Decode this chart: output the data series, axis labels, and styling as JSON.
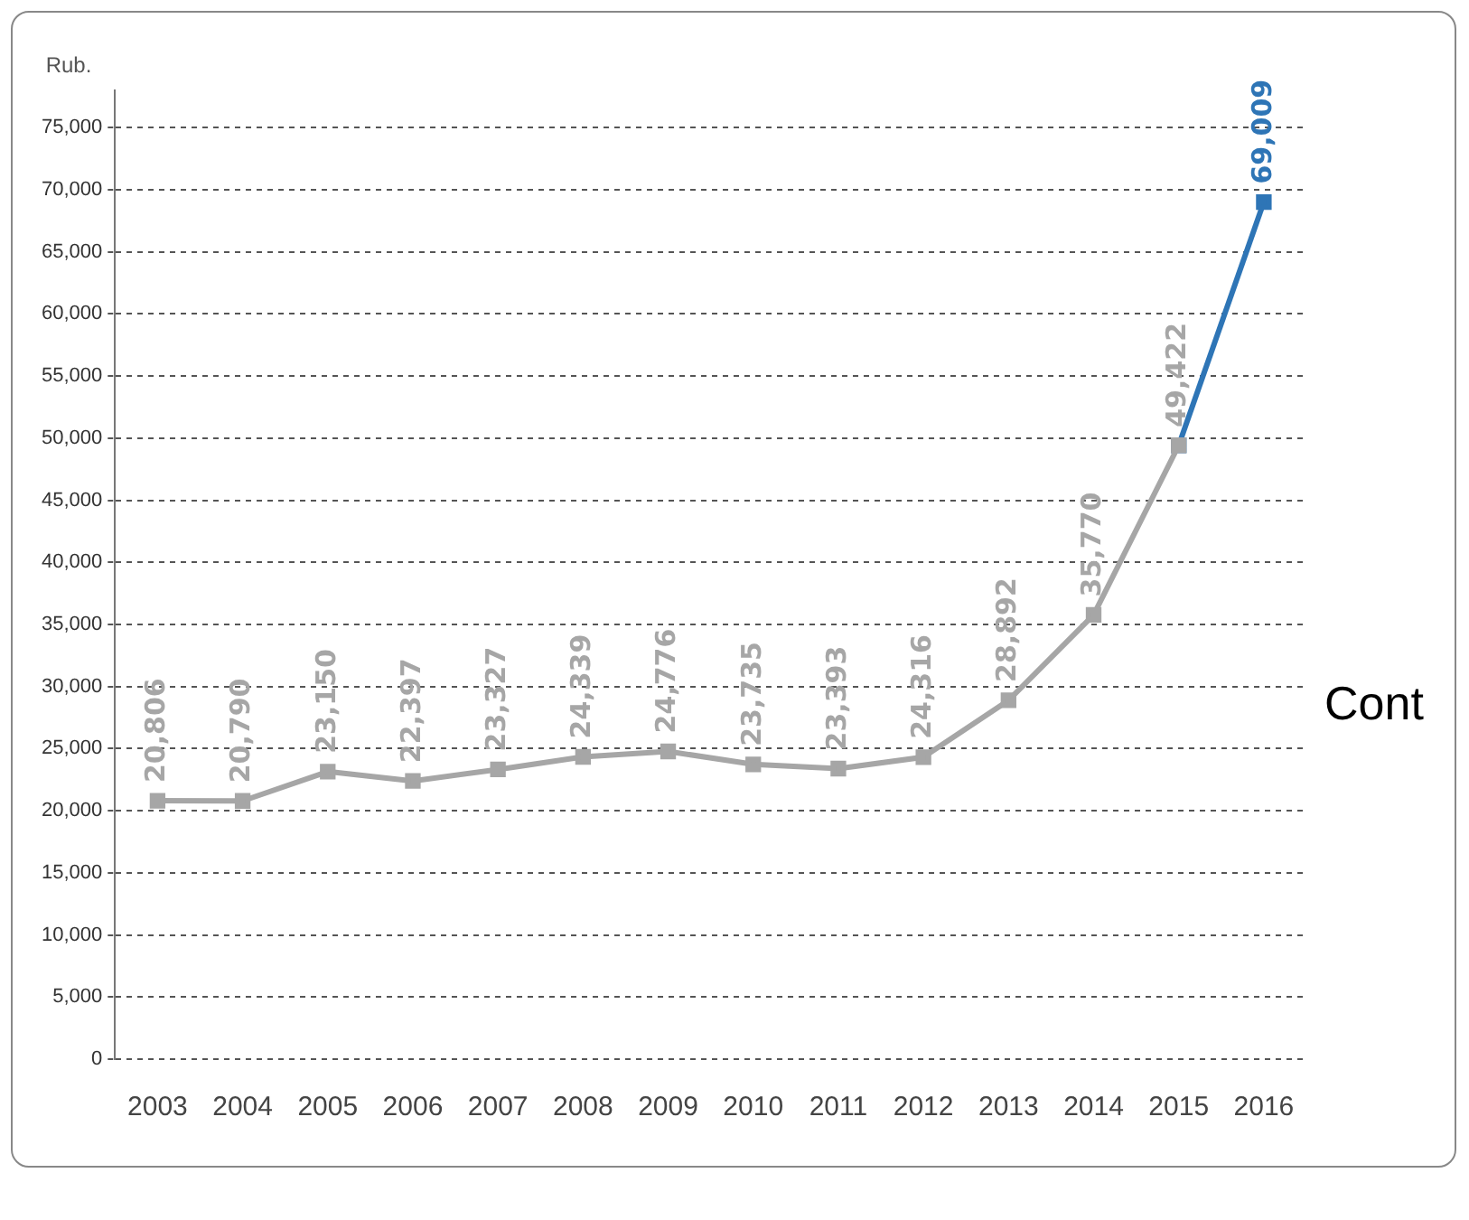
{
  "chart_data": {
    "type": "line",
    "ylabel": "Rub.",
    "categories": [
      "2003",
      "2004",
      "2005",
      "2006",
      "2007",
      "2008",
      "2009",
      "2010",
      "2011",
      "2012",
      "2013",
      "2014",
      "2015",
      "2016"
    ],
    "series": [
      {
        "color": "#a6a6a6",
        "values": [
          20806,
          20790,
          23150,
          22397,
          23327,
          24339,
          24776,
          23735,
          23393,
          24316,
          28892,
          35770,
          49422,
          null
        ],
        "value_labels": [
          "20,806",
          "20,790",
          "23,150",
          "22,397",
          "23,327",
          "24,339",
          "24,776",
          "23,735",
          "23,393",
          "24,316",
          "28,892",
          "35,770",
          "49,422",
          null
        ]
      },
      {
        "color": "#2e75b6",
        "values": [
          null,
          null,
          null,
          null,
          null,
          null,
          null,
          null,
          null,
          null,
          null,
          null,
          49422,
          69009
        ],
        "value_labels": [
          null,
          null,
          null,
          null,
          null,
          null,
          null,
          null,
          null,
          null,
          null,
          null,
          null,
          "69,009"
        ]
      }
    ],
    "ylim": [
      0,
      78000
    ],
    "yticks": [
      {
        "value": 0,
        "label": "0"
      },
      {
        "value": 5000,
        "label": "5,000"
      },
      {
        "value": 10000,
        "label": "10,000"
      },
      {
        "value": 15000,
        "label": "15,000"
      },
      {
        "value": 20000,
        "label": "20,000"
      },
      {
        "value": 25000,
        "label": "25,000"
      },
      {
        "value": 30000,
        "label": "30,000"
      },
      {
        "value": 35000,
        "label": "35,000"
      },
      {
        "value": 40000,
        "label": "40,000"
      },
      {
        "value": 45000,
        "label": "45,000"
      },
      {
        "value": 50000,
        "label": "50,000"
      },
      {
        "value": 55000,
        "label": "55,000"
      },
      {
        "value": 60000,
        "label": "60,000"
      },
      {
        "value": 65000,
        "label": "65,000"
      },
      {
        "value": 70000,
        "label": "70,000"
      },
      {
        "value": 75000,
        "label": "75,000"
      }
    ],
    "grid": "y",
    "marker": "square",
    "line_style": "solid",
    "legend": false,
    "annotations": [
      "Cont"
    ]
  }
}
